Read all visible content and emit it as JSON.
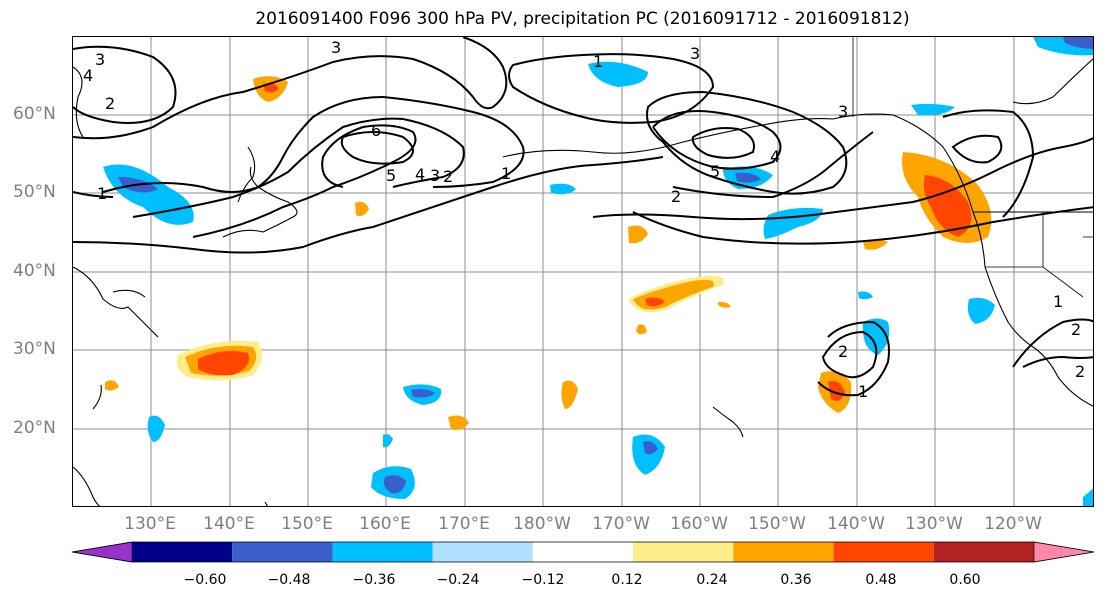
{
  "title": "2016091400 F096 300 hPa PV, precipitation PC (2016091712 - 2016091812)",
  "map": {
    "region": "North Pacific",
    "lat_labels": [
      "60°N",
      "50°N",
      "40°N",
      "30°N",
      "20°N"
    ],
    "lon_labels": [
      "130°E",
      "140°E",
      "150°E",
      "160°E",
      "170°E",
      "180°W",
      "170°W",
      "160°W",
      "150°W",
      "140°W",
      "130°W",
      "120°W"
    ],
    "pv_contour_labels": [
      "3",
      "3",
      "4",
      "2",
      "1",
      "6",
      "5",
      "4",
      "3",
      "2",
      "1",
      "1",
      "5",
      "4",
      "3",
      "2",
      "3",
      "1",
      "2",
      "1",
      "2",
      "2"
    ],
    "grid": true
  },
  "colorbar": {
    "tick_labels": [
      "−0.60",
      "−0.48",
      "−0.36",
      "−0.24",
      "−0.12",
      "0.12",
      "0.24",
      "0.36",
      "0.48",
      "0.60"
    ],
    "colors": [
      "#9932cc",
      "#00008b",
      "#3a5fcd",
      "#00bfff",
      "#b0e2ff",
      "#ffffff",
      "#ffec8b",
      "#ffa500",
      "#ff4500",
      "#b22222",
      "#ff88aa"
    ],
    "extend": "both"
  }
}
